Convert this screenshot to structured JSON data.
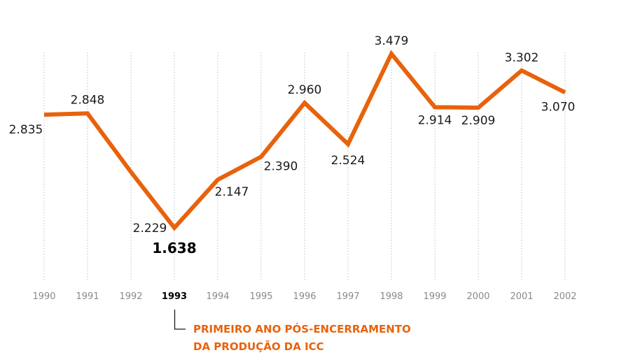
{
  "colors": {
    "line": "#e8620c",
    "annotation": "#e8620c",
    "grid": "#bdbdbd",
    "tick": "#8a8a8a"
  },
  "chart_data": {
    "type": "line",
    "x": [
      "1990",
      "1991",
      "1992",
      "1993",
      "1994",
      "1995",
      "1996",
      "1997",
      "1998",
      "1999",
      "2000",
      "2001",
      "2002"
    ],
    "labels": [
      "2.835",
      "2.848",
      "2.229",
      "1.638",
      "2.147",
      "2.390",
      "2.960",
      "2.524",
      "3.479",
      "2.914",
      "2.909",
      "3.302",
      "3.070"
    ],
    "values": [
      2.835,
      2.848,
      2.229,
      1.638,
      2.147,
      2.39,
      2.96,
      2.524,
      3.479,
      2.914,
      2.909,
      3.302,
      3.07
    ],
    "highlight_x": "1993",
    "grid": "vertical dotted",
    "annotation": {
      "x": "1993",
      "lines": [
        "PRIMEIRO ANO PÓS-ENCERRAMENTO",
        "DA PRODUÇÃO DA ICC"
      ]
    }
  }
}
